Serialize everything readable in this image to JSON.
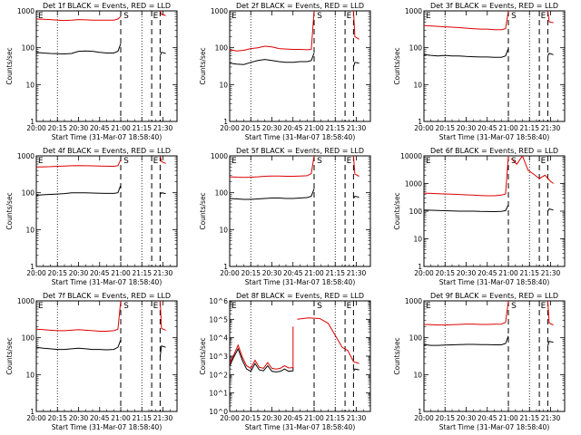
{
  "chart_data": {
    "type": "line",
    "layout": "3x3 grid",
    "x_axis": {
      "label": "Start Time (31-Mar-07 18:58:40)",
      "tick_labels": [
        "20:00",
        "20:15",
        "20:30",
        "20:45",
        "21:00",
        "21:15",
        "21:30"
      ],
      "tick_minutes": [
        0,
        15,
        30,
        45,
        60,
        75,
        90
      ],
      "range_minutes": [
        0,
        100
      ],
      "range": [
        "20:00",
        "21:40"
      ]
    },
    "y_axis": {
      "label": "Counts/sec",
      "scale": "log"
    },
    "colors": {
      "events": "#000000",
      "lld": "#dd0000"
    },
    "vlines": {
      "dotted_minutes": [
        15,
        75
      ],
      "dashed_minutes": [
        60,
        82,
        88
      ],
      "markers": [
        {
          "text": "S",
          "minute": 62
        },
        {
          "text": "E",
          "minute": 83
        }
      ],
      "marker_text_start": "E"
    },
    "panels": [
      {
        "title": "Det 1f BLACK = Events, RED = LLD",
        "ylim": [
          1,
          1000
        ],
        "ytick_labels": [
          "1",
          "10",
          "100",
          "1000"
        ],
        "series": [
          {
            "name": "Events",
            "color": "#000000",
            "x": [
              0,
              5,
              10,
              15,
              20,
              25,
              30,
              35,
              40,
              45,
              50,
              55,
              58
            ],
            "y": [
              75,
              72,
              70,
              69,
              68,
              70,
              80,
              82,
              80,
              75,
              72,
              72,
              80
            ]
          },
          {
            "name": "LLD",
            "color": "#dd0000",
            "x": [
              0,
              5,
              10,
              15,
              20,
              25,
              30,
              35,
              40,
              45,
              50,
              55,
              58
            ],
            "y": [
              600,
              590,
              580,
              560,
              550,
              560,
              580,
              570,
              560,
              560,
              560,
              560,
              600
            ]
          }
        ],
        "spike_x": 60,
        "spike_y_top": 700,
        "post_events": [
          [
            88,
            60
          ],
          [
            89,
            75
          ],
          [
            92,
            70
          ]
        ],
        "post_lld": [
          [
            88,
            1000
          ],
          [
            89,
            800
          ],
          [
            92,
            750
          ]
        ]
      },
      {
        "title": "Det 2f BLACK = Events, RED = LLD",
        "ylim": [
          1,
          1000
        ],
        "ytick_labels": [
          "1",
          "10",
          "100",
          "1000"
        ],
        "series": [
          {
            "name": "Events",
            "color": "#000000",
            "x": [
              0,
              5,
              10,
              15,
              20,
              25,
              30,
              35,
              40,
              45,
              50,
              55,
              58
            ],
            "y": [
              38,
              36,
              35,
              40,
              45,
              48,
              45,
              42,
              40,
              40,
              42,
              42,
              45
            ]
          },
          {
            "name": "LLD",
            "color": "#dd0000",
            "x": [
              0,
              5,
              10,
              15,
              20,
              25,
              30,
              35,
              40,
              45,
              50,
              55,
              58
            ],
            "y": [
              88,
              82,
              85,
              95,
              100,
              110,
              105,
              95,
              92,
              90,
              90,
              88,
              90
            ]
          }
        ],
        "spike_x": 60,
        "spike_y_top": 1000,
        "post_events": [
          [
            88,
            30
          ],
          [
            89,
            40
          ],
          [
            92,
            38
          ]
        ],
        "post_lld": [
          [
            88,
            1000
          ],
          [
            89,
            200
          ],
          [
            92,
            170
          ]
        ]
      },
      {
        "title": "Det 3f BLACK = Events, RED = LLD",
        "ylim": [
          1,
          1000
        ],
        "ytick_labels": [
          "1",
          "10",
          "100",
          "1000"
        ],
        "series": [
          {
            "name": "Events",
            "color": "#000000",
            "x": [
              0,
              5,
              10,
              15,
              20,
              25,
              30,
              35,
              40,
              45,
              50,
              55,
              58
            ],
            "y": [
              65,
              62,
              60,
              62,
              60,
              60,
              58,
              57,
              56,
              56,
              55,
              55,
              60
            ]
          },
          {
            "name": "LLD",
            "color": "#dd0000",
            "x": [
              0,
              5,
              10,
              15,
              20,
              25,
              30,
              35,
              40,
              45,
              50,
              55,
              58
            ],
            "y": [
              400,
              390,
              380,
              370,
              360,
              350,
              340,
              330,
              320,
              320,
              310,
              310,
              330
            ]
          }
        ],
        "spike_x": 60,
        "spike_y_top": 1000,
        "post_events": [
          [
            88,
            60
          ],
          [
            89,
            70
          ],
          [
            92,
            65
          ]
        ],
        "post_lld": [
          [
            88,
            1000
          ],
          [
            89,
            500
          ],
          [
            92,
            480
          ]
        ]
      },
      {
        "title": "Det 4f BLACK = Events, RED = LLD",
        "ylim": [
          1,
          1000
        ],
        "ytick_labels": [
          "1",
          "10",
          "100",
          "1000"
        ],
        "series": [
          {
            "name": "Events",
            "color": "#000000",
            "x": [
              0,
              5,
              10,
              15,
              20,
              25,
              30,
              35,
              40,
              45,
              50,
              55,
              58
            ],
            "y": [
              85,
              88,
              90,
              92,
              95,
              100,
              100,
              100,
              98,
              97,
              96,
              96,
              100
            ]
          },
          {
            "name": "LLD",
            "color": "#dd0000",
            "x": [
              0,
              5,
              10,
              15,
              20,
              25,
              30,
              35,
              40,
              45,
              50,
              55,
              58
            ],
            "y": [
              500,
              505,
              510,
              520,
              530,
              540,
              545,
              540,
              535,
              530,
              525,
              520,
              540
            ]
          }
        ],
        "spike_x": 60,
        "spike_y_top": 800,
        "post_events": [
          [
            88,
            90
          ],
          [
            89,
            100
          ],
          [
            92,
            95
          ]
        ],
        "post_lld": [
          [
            88,
            1000
          ],
          [
            89,
            700
          ],
          [
            92,
            620
          ]
        ]
      },
      {
        "title": "Det 5f BLACK = Events, RED = LLD",
        "ylim": [
          1,
          1000
        ],
        "ytick_labels": [
          "1",
          "10",
          "100",
          "1000"
        ],
        "series": [
          {
            "name": "Events",
            "color": "#000000",
            "x": [
              0,
              5,
              10,
              15,
              20,
              25,
              30,
              35,
              40,
              45,
              50,
              55,
              58
            ],
            "y": [
              70,
              68,
              66,
              66,
              68,
              70,
              72,
              72,
              70,
              70,
              72,
              74,
              80
            ]
          },
          {
            "name": "LLD",
            "color": "#dd0000",
            "x": [
              0,
              5,
              10,
              15,
              20,
              25,
              30,
              35,
              40,
              45,
              50,
              55,
              58
            ],
            "y": [
              270,
              265,
              262,
              265,
              270,
              280,
              285,
              285,
              280,
              280,
              285,
              290,
              330
            ]
          }
        ],
        "spike_x": 60,
        "spike_y_top": 1000,
        "post_events": [
          [
            88,
            70
          ],
          [
            89,
            80
          ],
          [
            92,
            75
          ]
        ],
        "post_lld": [
          [
            88,
            1000
          ],
          [
            89,
            320
          ],
          [
            92,
            280
          ]
        ]
      },
      {
        "title": "Det 6f BLACK = Events, RED = LLD",
        "ylim": [
          1,
          10000
        ],
        "ytick_labels": [
          "1",
          "10",
          "100",
          "1000",
          "10000"
        ],
        "series": [
          {
            "name": "Events",
            "color": "#000000",
            "x": [
              0,
              5,
              10,
              15,
              20,
              25,
              30,
              35,
              40,
              45,
              50,
              55,
              58
            ],
            "y": [
              110,
              108,
              106,
              104,
              102,
              100,
              100,
              100,
              98,
              97,
              96,
              98,
              105
            ]
          },
          {
            "name": "LLD",
            "color": "#dd0000",
            "x": [
              0,
              5,
              10,
              15,
              20,
              25,
              30,
              35,
              40,
              45,
              50,
              55,
              58
            ],
            "y": [
              450,
              440,
              430,
              420,
              410,
              400,
              390,
              380,
              370,
              360,
              360,
              380,
              420
            ]
          }
        ],
        "spike_x": 60,
        "spike_y_top": 10000,
        "post_events": [
          [
            88,
            100
          ],
          [
            89,
            120
          ],
          [
            92,
            110
          ]
        ],
        "post_lld": [
          [
            62,
            8000
          ],
          [
            66,
            5000
          ],
          [
            70,
            10000
          ],
          [
            74,
            3000
          ],
          [
            78,
            2200
          ],
          [
            82,
            1500
          ],
          [
            86,
            2000
          ],
          [
            90,
            1200
          ],
          [
            92,
            1000
          ]
        ]
      },
      {
        "title": "Det 7f BLACK = Events, RED = LLD",
        "ylim": [
          1,
          1000
        ],
        "ytick_labels": [
          "1",
          "10",
          "100",
          "1000"
        ],
        "series": [
          {
            "name": "Events",
            "color": "#000000",
            "x": [
              0,
              5,
              10,
              15,
              20,
              25,
              30,
              35,
              40,
              45,
              50,
              55,
              58
            ],
            "y": [
              55,
              52,
              50,
              48,
              48,
              50,
              52,
              50,
              48,
              48,
              47,
              48,
              55
            ]
          },
          {
            "name": "LLD",
            "color": "#dd0000",
            "x": [
              0,
              5,
              10,
              15,
              20,
              25,
              30,
              35,
              40,
              45,
              50,
              55,
              58
            ],
            "y": [
              170,
              165,
              160,
              155,
              155,
              160,
              165,
              160,
              155,
              150,
              150,
              155,
              170
            ]
          }
        ],
        "spike_x": 60,
        "spike_y_top": 1000,
        "post_events": [
          [
            88,
            30
          ],
          [
            89,
            60
          ],
          [
            92,
            55
          ]
        ],
        "post_lld": [
          [
            88,
            1000
          ],
          [
            89,
            180
          ],
          [
            92,
            160
          ]
        ]
      },
      {
        "title": "Det 8f BLACK = Events, RED = LLD",
        "ylim": [
          1,
          1000000
        ],
        "ytick_labels": [
          "10^0",
          "10^1",
          "10^2",
          "10^3",
          "10^4",
          "10^5",
          "10^6"
        ],
        "series": [
          {
            "name": "Events",
            "color": "#000000",
            "x": [
              0,
              3,
              6,
              9,
              12,
              15,
              18,
              21,
              24,
              27,
              30,
              33,
              36,
              39,
              42,
              45
            ],
            "y": [
              300,
              900,
              2500,
              600,
              200,
              150,
              400,
              180,
              160,
              300,
              150,
              140,
              150,
              200,
              150,
              160
            ]
          },
          {
            "name": "LLD",
            "color": "#dd0000",
            "x": [
              0,
              3,
              6,
              9,
              12,
              15,
              18,
              21,
              24,
              27,
              30,
              33,
              36,
              39,
              42,
              45
            ],
            "y": [
              400,
              1200,
              4000,
              900,
              300,
              220,
              600,
              250,
              220,
              450,
              220,
              200,
              220,
              300,
              230,
              240
            ]
          }
        ],
        "spike_x": 45,
        "spike_y_top": 40000,
        "post_events": [
          [
            88,
            150
          ],
          [
            89,
            200
          ],
          [
            92,
            180
          ]
        ],
        "post_lld": [
          [
            48,
            100000
          ],
          [
            56,
            120000
          ],
          [
            64,
            110000
          ],
          [
            70,
            60000
          ],
          [
            76,
            10000
          ],
          [
            80,
            3000
          ],
          [
            84,
            2000
          ],
          [
            88,
            500
          ],
          [
            92,
            400
          ]
        ]
      },
      {
        "title": "Det 9f BLACK = Events, RED = LLD",
        "ylim": [
          1,
          1000
        ],
        "ytick_labels": [
          "1",
          "10",
          "100",
          "1000"
        ],
        "series": [
          {
            "name": "Events",
            "color": "#000000",
            "x": [
              0,
              5,
              10,
              15,
              20,
              25,
              30,
              35,
              40,
              45,
              50,
              55,
              58
            ],
            "y": [
              65,
              62,
              62,
              63,
              64,
              65,
              66,
              66,
              65,
              65,
              64,
              64,
              70
            ]
          },
          {
            "name": "LLD",
            "color": "#dd0000",
            "x": [
              0,
              5,
              10,
              15,
              20,
              25,
              30,
              35,
              40,
              45,
              50,
              55,
              58
            ],
            "y": [
              230,
              225,
              222,
              222,
              225,
              230,
              235,
              235,
              230,
              230,
              232,
              235,
              260
            ]
          }
        ],
        "spike_x": 60,
        "spike_y_top": 1000,
        "post_events": [
          [
            88,
            60
          ],
          [
            89,
            80
          ],
          [
            92,
            75
          ]
        ],
        "post_lld": [
          [
            88,
            1000
          ],
          [
            89,
            250
          ],
          [
            92,
            220
          ]
        ]
      }
    ]
  }
}
